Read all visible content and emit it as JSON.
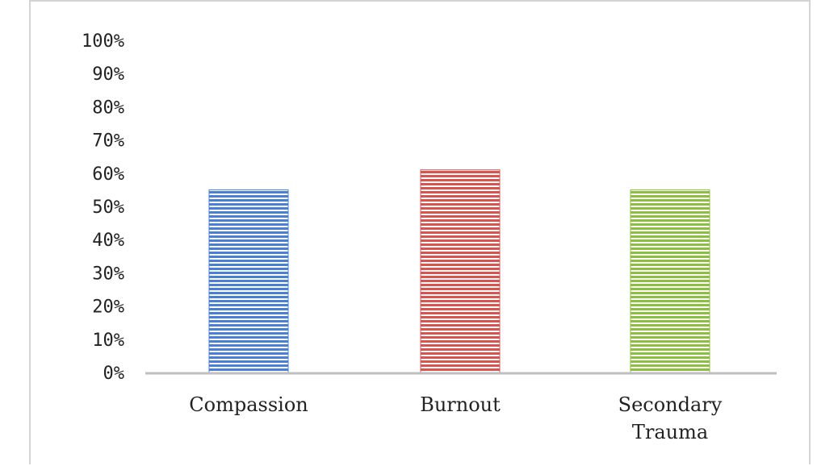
{
  "chart_data": {
    "type": "bar",
    "title": "",
    "xlabel": "",
    "ylabel": "",
    "ylim": [
      0,
      100
    ],
    "y_tick_values": [
      0,
      10,
      20,
      30,
      40,
      50,
      60,
      70,
      80,
      90,
      100
    ],
    "y_tick_labels": [
      "0%",
      "10%",
      "20%",
      "30%",
      "40%",
      "50%",
      "60%",
      "70%",
      "80%",
      "90%",
      "100%"
    ],
    "grid": false,
    "legend": "none",
    "categories": [
      "Compassion",
      "Burnout",
      "Secondary Trauma"
    ],
    "category_label_lines": [
      [
        "Compassion"
      ],
      [
        "Burnout"
      ],
      [
        "Secondary",
        "Trauma"
      ]
    ],
    "values": [
      55,
      61,
      55
    ],
    "colors": [
      "#4a7fd6",
      "#d9534f",
      "#8cbf3f"
    ],
    "axis_color": "#bfbfbf"
  }
}
